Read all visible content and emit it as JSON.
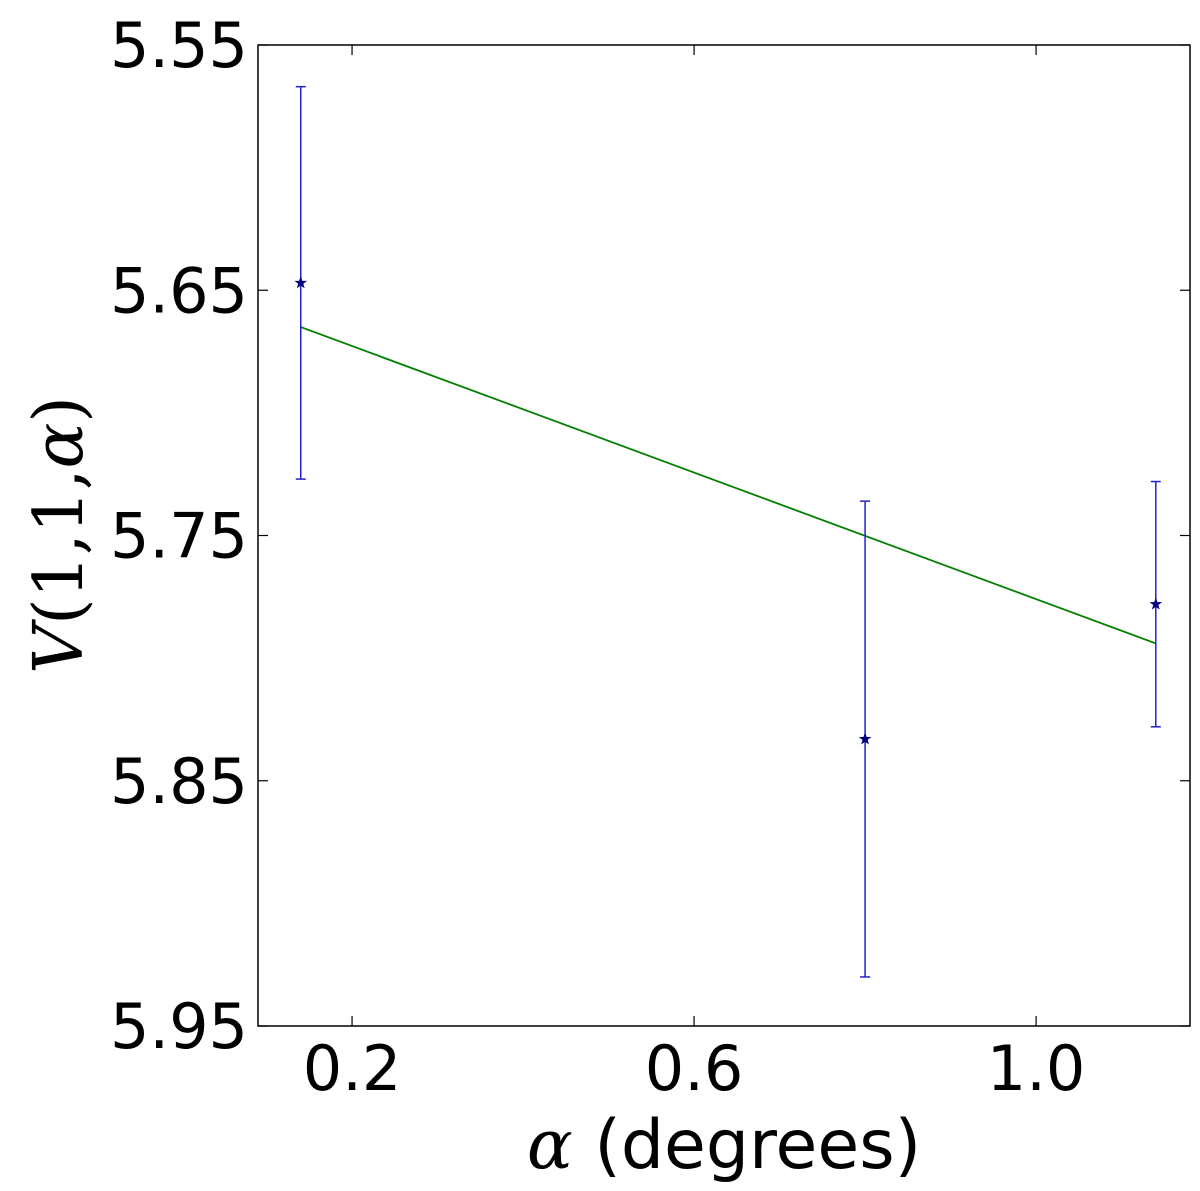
{
  "chart_data": {
    "type": "scatter",
    "title": "",
    "xlabel": {
      "symbol": "α",
      "text": " (degrees)"
    },
    "ylabel": {
      "symbol": "V",
      "args": "(1,1,",
      "symbol2": "α",
      "close": ")"
    },
    "xlim": [
      0.09,
      1.18
    ],
    "ylim": [
      5.95,
      5.55
    ],
    "y_inverted": true,
    "x_ticks": [
      {
        "value": 0.2,
        "label": "0.2"
      },
      {
        "value": 0.6,
        "label": "0.6"
      },
      {
        "value": 1.0,
        "label": "1.0"
      }
    ],
    "y_ticks": [
      {
        "value": 5.55,
        "label": "5.55"
      },
      {
        "value": 5.65,
        "label": "5.65"
      },
      {
        "value": 5.75,
        "label": "5.75"
      },
      {
        "value": 5.85,
        "label": "5.85"
      },
      {
        "value": 5.95,
        "label": "5.95"
      }
    ],
    "series": [
      {
        "kind": "errorbar",
        "marker": "star",
        "color": "#000080",
        "errcolor": "#2222cc",
        "points": [
          {
            "x": 0.14,
            "y": 5.647,
            "err": 0.08
          },
          {
            "x": 0.8,
            "y": 5.833,
            "err": 0.097
          },
          {
            "x": 1.14,
            "y": 5.778,
            "err": 0.05
          }
        ]
      },
      {
        "kind": "line",
        "color": "#007f00",
        "x": [
          0.14,
          1.14
        ],
        "y": [
          5.665,
          5.794
        ]
      }
    ],
    "grid": false,
    "legend": "none"
  }
}
